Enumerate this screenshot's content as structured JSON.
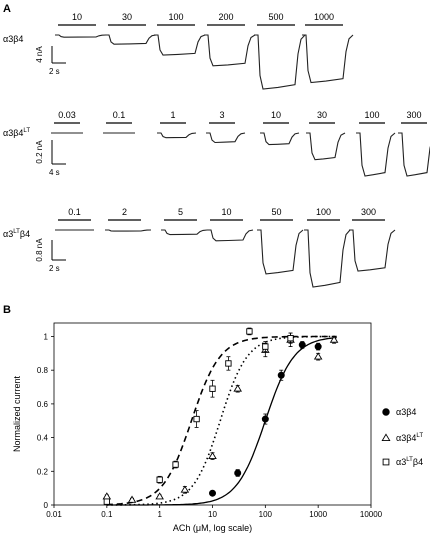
{
  "panel_a": {
    "label": "A",
    "rows": [
      {
        "name": "α3β4",
        "name_sup": "",
        "scale_y": "4 nA",
        "scale_x": "2 s",
        "concentrations": [
          "10",
          "30",
          "100",
          "200",
          "500",
          "1000"
        ],
        "responses": [
          0.04,
          0.17,
          0.37,
          0.57,
          1.0,
          0.88
        ]
      },
      {
        "name": "α3β4",
        "name_sup": "LT",
        "scale_y": "0.2 nA",
        "scale_x": "4 s",
        "concentrations": [
          "0.03",
          "0.1",
          "1",
          "3",
          "10",
          "30",
          "100",
          "300"
        ],
        "responses": [
          0.02,
          0.02,
          0.11,
          0.22,
          0.27,
          0.62,
          1.0,
          1.0
        ]
      },
      {
        "name": "α3",
        "name_sup": "LT",
        "name_tail": "β4",
        "scale_y": "0.8 nA",
        "scale_x": "2 s",
        "concentrations": [
          "0.1",
          "2",
          "5",
          "10",
          "50",
          "100",
          "300"
        ],
        "responses": [
          0.0,
          0.02,
          0.08,
          0.19,
          0.77,
          1.0,
          0.72
        ]
      }
    ]
  },
  "panel_b": {
    "label": "B",
    "chart_data": {
      "type": "scatter",
      "xscale": "log",
      "xlabel": "ACh (μM, log scale)",
      "ylabel": "Normalized current",
      "xlim": [
        0.01,
        10000
      ],
      "ylim": [
        0,
        1.08
      ],
      "x_ticks": [
        "0.01",
        "0.1",
        "1",
        "10",
        "100",
        "1000",
        "10000"
      ],
      "y_ticks": [
        "0",
        "0.2",
        "0.4",
        "0.6",
        "0.8",
        "1"
      ],
      "legend_position": "right",
      "series": [
        {
          "name": "α3β4",
          "marker": "filled-circle",
          "line": "solid",
          "ec50": 100,
          "hill": 1.6,
          "x": [
            10,
            30,
            100,
            200,
            500,
            1000
          ],
          "y": [
            0.07,
            0.19,
            0.51,
            0.77,
            0.95,
            0.94
          ],
          "err": [
            0.01,
            0.02,
            0.03,
            0.03,
            0.02,
            0.02
          ]
        },
        {
          "name": "α3β4",
          "name_sup": "LT",
          "marker": "open-triangle",
          "line": "dotted",
          "ec50": 14,
          "hill": 1.7,
          "x": [
            0.1,
            0.3,
            1,
            3,
            10,
            30,
            100,
            300,
            1000,
            2000
          ],
          "y": [
            0.05,
            0.03,
            0.05,
            0.09,
            0.29,
            0.69,
            0.92,
            0.98,
            0.88,
            0.98
          ],
          "err": [
            0.01,
            0.01,
            0.01,
            0.02,
            0.02,
            0.02,
            0.04,
            0.04,
            0.02,
            0.02
          ]
        },
        {
          "name": "α3",
          "name_sup": "LT",
          "name_tail": "β4",
          "marker": "open-square",
          "line": "dashed",
          "ec50": 4,
          "hill": 1.6,
          "x": [
            0.1,
            1,
            2,
            5,
            10,
            20,
            50,
            100,
            300
          ],
          "y": [
            0.02,
            0.15,
            0.24,
            0.51,
            0.69,
            0.84,
            1.03,
            0.94,
            0.99
          ],
          "err": [
            0.01,
            0.02,
            0.02,
            0.05,
            0.05,
            0.04,
            0.02,
            0.03,
            0.03
          ]
        }
      ]
    }
  }
}
